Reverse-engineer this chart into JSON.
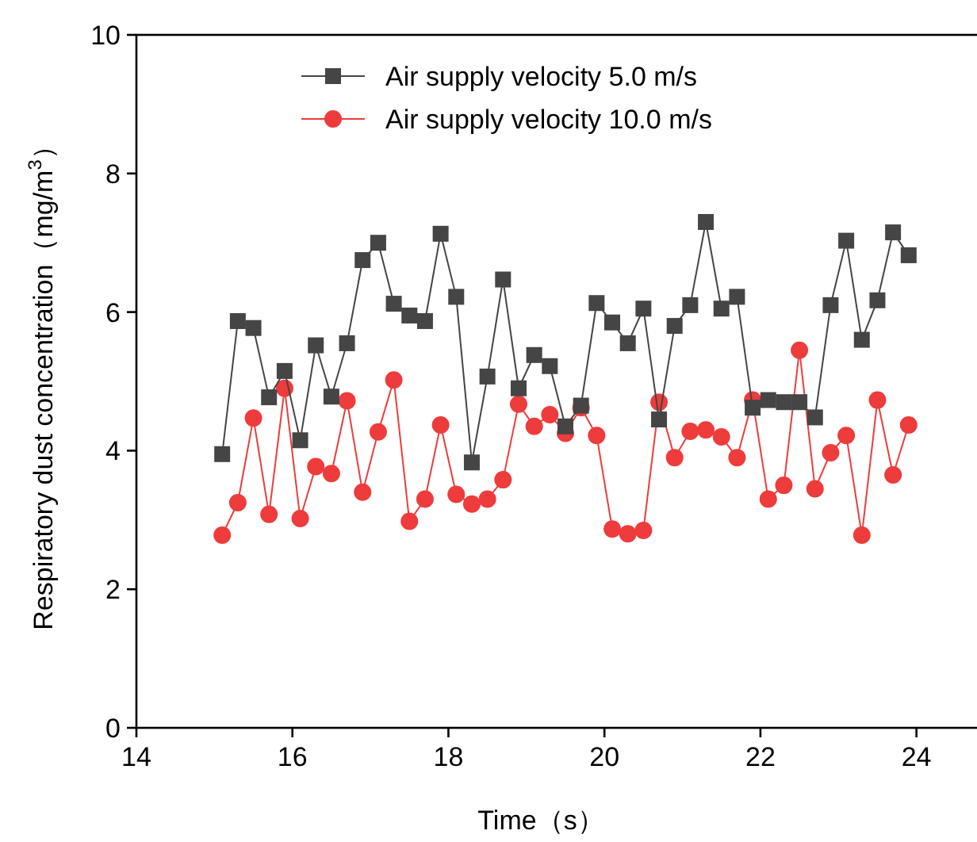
{
  "chart_data": {
    "type": "line",
    "xlabel": "Time（s）",
    "ylabel": "Respiratory dust concentration（mg/m$^{3}$）",
    "x": [
      15.1,
      15.3,
      15.5,
      15.7,
      15.9,
      16.1,
      16.3,
      16.5,
      16.7,
      16.9,
      17.1,
      17.3,
      17.5,
      17.7,
      17.9,
      18.1,
      18.3,
      18.5,
      18.7,
      18.9,
      19.1,
      19.3,
      19.5,
      19.7,
      19.9,
      20.1,
      20.3,
      20.5,
      20.7,
      20.9,
      21.1,
      21.3,
      21.5,
      21.7,
      21.9,
      22.1,
      22.3,
      22.5,
      22.7,
      22.9,
      23.1,
      23.3,
      23.5,
      23.7,
      23.9
    ],
    "series": [
      {
        "name": "Air supply velocity 5.0 m/s",
        "color": "#454545",
        "marker": "square",
        "values": [
          3.95,
          5.87,
          5.77,
          4.77,
          5.15,
          4.15,
          5.52,
          4.78,
          5.55,
          6.75,
          7.0,
          6.12,
          5.95,
          5.87,
          7.13,
          6.22,
          3.83,
          5.07,
          6.47,
          4.9,
          5.38,
          5.22,
          4.35,
          4.65,
          6.13,
          5.85,
          5.55,
          6.05,
          4.45,
          5.8,
          6.1,
          7.3,
          6.05,
          6.22,
          4.62,
          4.73,
          4.7,
          4.7,
          4.48,
          6.1,
          7.03,
          5.6,
          6.17,
          7.15,
          6.82
        ]
      },
      {
        "name": "Air supply velocity 10.0 m/s",
        "color": "#ee3b3b",
        "marker": "circle",
        "values": [
          2.78,
          3.25,
          4.47,
          3.08,
          4.9,
          3.02,
          3.77,
          3.67,
          4.72,
          3.4,
          4.27,
          5.02,
          2.98,
          3.3,
          4.37,
          3.37,
          3.23,
          3.3,
          3.58,
          4.67,
          4.35,
          4.52,
          4.25,
          4.62,
          4.22,
          2.87,
          2.8,
          2.85,
          4.7,
          3.9,
          4.28,
          4.3,
          4.2,
          3.9,
          4.73,
          3.3,
          3.5,
          5.45,
          3.45,
          3.97,
          4.22,
          2.78,
          4.73,
          3.65,
          4.37
        ]
      }
    ],
    "xlim": [
      14,
      25
    ],
    "xticks": [
      14,
      16,
      18,
      20,
      22,
      24
    ],
    "ylim": [
      0,
      10
    ],
    "yticks": [
      0,
      2,
      4,
      6,
      8,
      10
    ],
    "grid": false,
    "legend": "top",
    "line_style": "solid"
  }
}
